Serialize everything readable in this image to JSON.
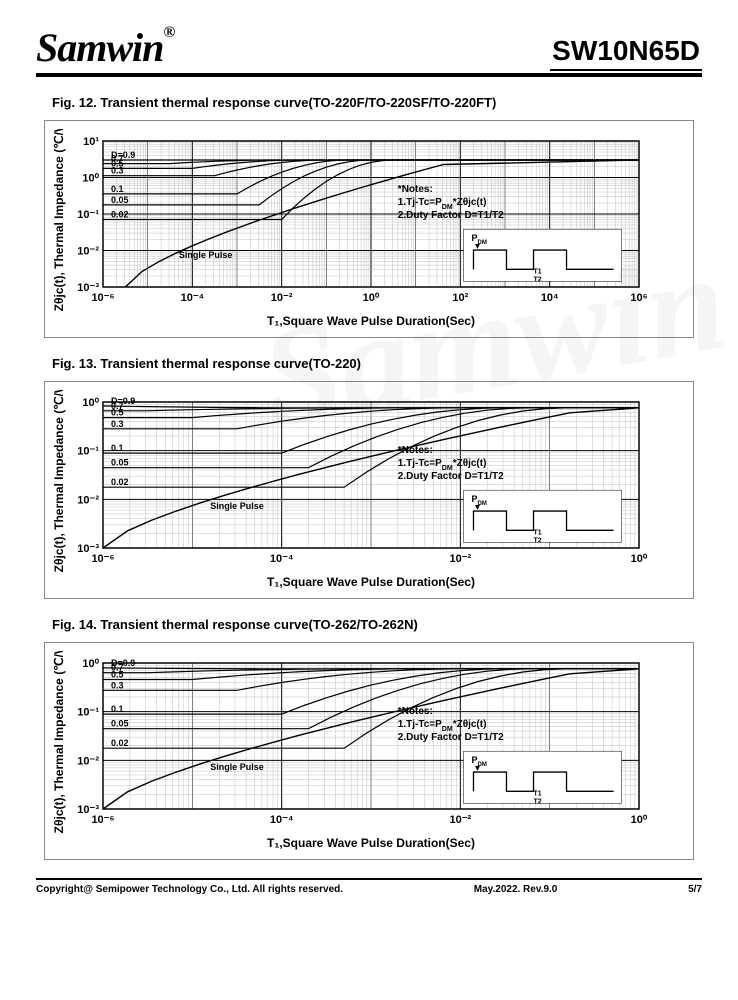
{
  "header": {
    "logo_text": "Samwin",
    "logo_reg": "®",
    "part_number": "SW10N65D"
  },
  "footer": {
    "copyright": "Copyright@ Semipower Technology Co., Ltd. All rights reserved.",
    "rev": "May.2022. Rev.9.0",
    "page": "5/7"
  },
  "watermark": "Samwin",
  "charts": [
    {
      "title": "Fig. 12. Transient thermal response curve(TO-220F/TO-220SF/TO-220FT)",
      "x_label": "T₁,Square Wave Pulse Duration(Sec)",
      "y_label": "Zθjc(t), Thermal Impedance (℃/W)",
      "x_log_min": -6,
      "x_log_max": 6,
      "y_log_min": -3,
      "y_log_max": 1,
      "x_ticks": [
        "10⁻⁶",
        "10⁻⁴",
        "10⁻²",
        "10⁰",
        "10²",
        "10⁴",
        "10⁶"
      ],
      "y_ticks": [
        "10⁻³",
        "10⁻²",
        "10⁻¹",
        "10⁰",
        "10¹"
      ],
      "plot_bg": "#ffffff",
      "grid_color": "#000000",
      "line_color": "#000000",
      "curves": [
        {
          "label": "D=0.9",
          "flat_start_y": 0.48,
          "converge_y": 0.48,
          "knee_x": -2.5
        },
        {
          "label": "0.7",
          "flat_start_y": 0.38,
          "converge_y": 0.48,
          "knee_x": -2.0
        },
        {
          "label": "0.5",
          "flat_start_y": 0.25,
          "converge_y": 0.48,
          "knee_x": -1.5
        },
        {
          "label": "0.3",
          "flat_start_y": 0.05,
          "converge_y": 0.48,
          "knee_x": -1.0
        },
        {
          "label": "0.1",
          "flat_start_y": -0.45,
          "converge_y": 0.48,
          "knee_x": -0.5
        },
        {
          "label": "0.05",
          "flat_start_y": -0.75,
          "converge_y": 0.48,
          "knee_x": 0.0
        },
        {
          "label": "0.02",
          "flat_start_y": -1.15,
          "converge_y": 0.48,
          "knee_x": 0.5
        }
      ],
      "single_pulse": {
        "label": "Single Pulse",
        "start_x": -5.5,
        "start_y": -3.0,
        "end_x": 2.0,
        "end_y": 0.48
      },
      "notes": [
        "*Notes:",
        "1.Tj-Tc=P_DM*Zθjc(t)",
        "2.Duty Factor D=T1/T2"
      ],
      "pulse_diagram": {
        "label_p": "P_DM",
        "label_t1": "T1",
        "label_t2": "T2"
      }
    },
    {
      "title": "Fig. 13. Transient thermal response curve(TO-220)",
      "x_label": "T₁,Square Wave Pulse Duration(Sec)",
      "y_label": "Zθjc(t), Thermal Impedance (℃/W)",
      "x_log_min": -6,
      "x_log_max": 0,
      "y_log_min": -3,
      "y_log_max": 0,
      "x_ticks": [
        "10⁻⁶",
        "10⁻⁴",
        "10⁻²",
        "10⁰"
      ],
      "y_ticks": [
        "10⁻³",
        "10⁻²",
        "10⁻¹",
        "10⁰"
      ],
      "plot_bg": "#ffffff",
      "grid_color": "#000000",
      "line_color": "#000000",
      "curves": [
        {
          "label": "D=0.9",
          "flat_start_y": -0.08,
          "converge_y": -0.12,
          "knee_x": -3.5
        },
        {
          "label": "0.7",
          "flat_start_y": -0.18,
          "converge_y": -0.12,
          "knee_x": -3.0
        },
        {
          "label": "0.5",
          "flat_start_y": -0.32,
          "converge_y": -0.12,
          "knee_x": -2.5
        },
        {
          "label": "0.3",
          "flat_start_y": -0.55,
          "converge_y": -0.12,
          "knee_x": -2.0
        },
        {
          "label": "0.1",
          "flat_start_y": -1.05,
          "converge_y": -0.12,
          "knee_x": -1.5
        },
        {
          "label": "0.05",
          "flat_start_y": -1.35,
          "converge_y": -0.12,
          "knee_x": -1.2
        },
        {
          "label": "0.02",
          "flat_start_y": -1.75,
          "converge_y": -0.12,
          "knee_x": -0.8
        }
      ],
      "single_pulse": {
        "label": "Single Pulse",
        "start_x": -6.0,
        "start_y": -3.0,
        "end_x": -0.5,
        "end_y": -0.12
      },
      "notes": [
        "*Notes:",
        "1.Tj-Tc=P_DM*Zθjc(t)",
        "2.Duty Factor D=T1/T2"
      ],
      "pulse_diagram": {
        "label_p": "P_DM",
        "label_t1": "T1",
        "label_t2": "T2"
      }
    },
    {
      "title": "Fig. 14. Transient thermal response curve(TO-262/TO-262N)",
      "x_label": "T₁,Square Wave Pulse Duration(Sec)",
      "y_label": "Zθjc(t), Thermal Impedance (℃/W)",
      "x_log_min": -6,
      "x_log_max": 0,
      "y_log_min": -3,
      "y_log_max": 0,
      "x_ticks": [
        "10⁻⁶",
        "10⁻⁴",
        "10⁻²",
        "10⁰"
      ],
      "y_ticks": [
        "10⁻³",
        "10⁻²",
        "10⁻¹",
        "10⁰"
      ],
      "plot_bg": "#ffffff",
      "grid_color": "#000000",
      "line_color": "#000000",
      "curves": [
        {
          "label": "D=0.9",
          "flat_start_y": -0.1,
          "converge_y": -0.12,
          "knee_x": -3.5
        },
        {
          "label": "0.7",
          "flat_start_y": -0.2,
          "converge_y": -0.12,
          "knee_x": -3.0
        },
        {
          "label": "0.5",
          "flat_start_y": -0.34,
          "converge_y": -0.12,
          "knee_x": -2.5
        },
        {
          "label": "0.3",
          "flat_start_y": -0.56,
          "converge_y": -0.12,
          "knee_x": -2.0
        },
        {
          "label": "0.1",
          "flat_start_y": -1.05,
          "converge_y": -0.12,
          "knee_x": -1.5
        },
        {
          "label": "0.05",
          "flat_start_y": -1.35,
          "converge_y": -0.12,
          "knee_x": -1.2
        },
        {
          "label": "0.02",
          "flat_start_y": -1.75,
          "converge_y": -0.12,
          "knee_x": -0.8
        }
      ],
      "single_pulse": {
        "label": "Single Pulse",
        "start_x": -6.0,
        "start_y": -3.0,
        "end_x": -0.5,
        "end_y": -0.12
      },
      "notes": [
        "*Notes:",
        "1.Tj-Tc=P_DM*Zθjc(t)",
        "2.Duty Factor D=T1/T2"
      ],
      "pulse_diagram": {
        "label_p": "P_DM",
        "label_t1": "T1",
        "label_t2": "T2"
      }
    }
  ]
}
